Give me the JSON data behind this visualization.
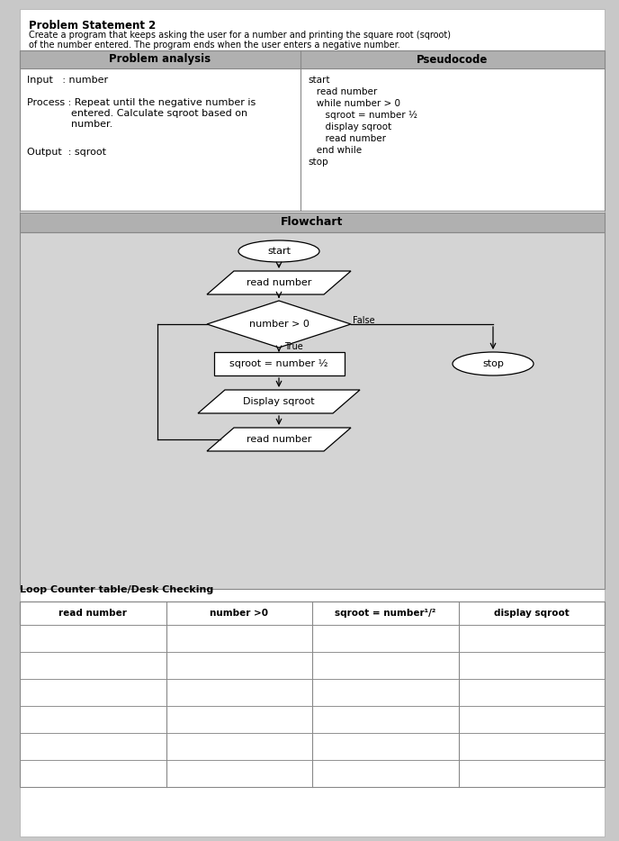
{
  "title": "Problem Statement 2",
  "desc_line1": "Create a program that keeps asking the user for a number and printing the square root (sqroot)",
  "desc_line2": "of the number entered. The program ends when the user enters a negative number.",
  "problem_analysis_header": "Problem analysis",
  "pseudocode_header": "Pseudocode",
  "input_label": "Input   : number",
  "process_line1": "Process : Repeat until the negative number is",
  "process_line2": "              entered. Calculate sqroot based on",
  "process_line3": "              number.",
  "output_label": "Output  : sqroot",
  "pseudocode_lines": [
    "start",
    "   read number",
    "   while number > 0",
    "      sqroot = number ½",
    "      display sqroot",
    "      read number",
    "   end while",
    "stop"
  ],
  "flowchart_header": "Flowchart",
  "fc_start_label": "start",
  "fc_read1_label": "read number",
  "fc_diamond_label": "number > 0",
  "fc_process_label": "sqroot = number ½",
  "fc_disp_label": "Display sqroot",
  "fc_read2_label": "read number",
  "fc_stop_label": "stop",
  "fc_true_label": "True",
  "fc_false_label": "False",
  "table_header": "Loop Counter table/Desk Checking",
  "table_columns": [
    "read number",
    "number >0",
    "sqroot = number¹/²",
    "display sqroot"
  ],
  "table_rows": 6,
  "page_bg": "#c8c8c8",
  "white": "#ffffff",
  "header_gray": "#b0b0b0",
  "fc_bg": "#d4d4d4",
  "border_color": "#888888"
}
